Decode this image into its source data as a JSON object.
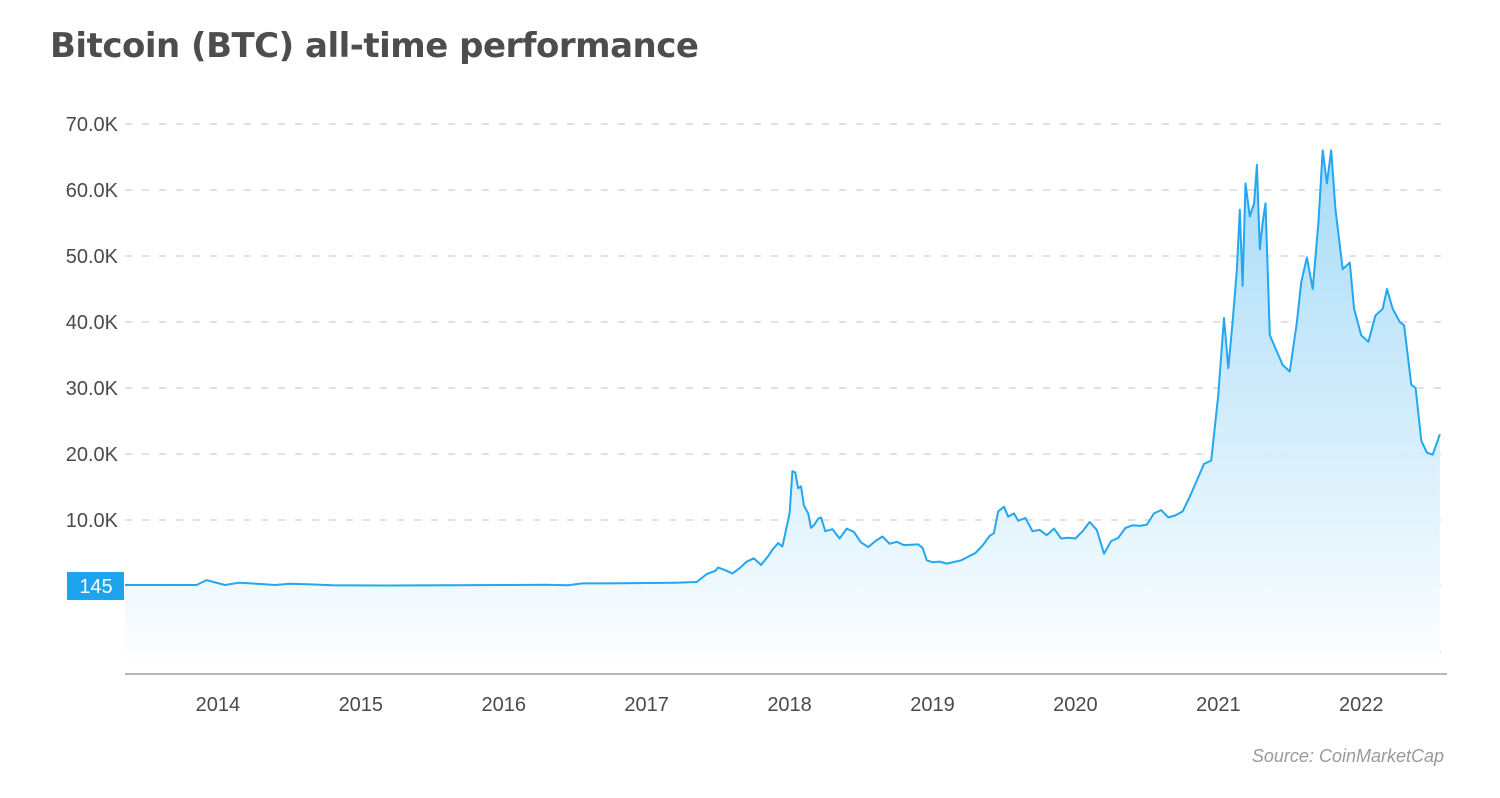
{
  "title": "Bitcoin (BTC) all-time performance",
  "source": "Source: CoinMarketCap",
  "colors": {
    "line": "#22a7f0",
    "fill_top": "#9fd8f7",
    "fill_bottom": "#ffffff",
    "grid": "#cfcfcf",
    "axis": "#9e9e9e",
    "callout_bg": "#1ea3ef"
  },
  "chart_data": {
    "type": "area",
    "x_unit": "year (decimal)",
    "y_unit": "USD",
    "ylim": [
      -10000,
      70000
    ],
    "xlim": [
      2013.35,
      2022.6
    ],
    "grid": "horizontal dashed",
    "legend": "none",
    "y_ticks": [
      {
        "value": 70000,
        "label": "70.0K"
      },
      {
        "value": 60000,
        "label": "60.0K"
      },
      {
        "value": 50000,
        "label": "50.0K"
      },
      {
        "value": 40000,
        "label": "40.0K"
      },
      {
        "value": 30000,
        "label": "30.0K"
      },
      {
        "value": 20000,
        "label": "20.0K"
      },
      {
        "value": 10000,
        "label": "10.0K"
      },
      {
        "value": 0,
        "label": ""
      },
      {
        "value": -10000,
        "label": ""
      }
    ],
    "x_ticks": [
      {
        "value": 2014.0,
        "label": "2014"
      },
      {
        "value": 2015.0,
        "label": "2015"
      },
      {
        "value": 2016.0,
        "label": "2016"
      },
      {
        "value": 2017.0,
        "label": "2017"
      },
      {
        "value": 2018.0,
        "label": "2018"
      },
      {
        "value": 2019.0,
        "label": "2019"
      },
      {
        "value": 2020.0,
        "label": "2020"
      },
      {
        "value": 2021.0,
        "label": "2021"
      },
      {
        "value": 2022.0,
        "label": "2022"
      }
    ],
    "callout": {
      "label": "145",
      "value": 145
    },
    "series": [
      {
        "points": [
          [
            2013.35,
            145
          ],
          [
            2013.85,
            145
          ],
          [
            2013.92,
            900
          ],
          [
            2014.05,
            150
          ],
          [
            2014.15,
            500
          ],
          [
            2014.3,
            300
          ],
          [
            2014.4,
            150
          ],
          [
            2014.5,
            350
          ],
          [
            2014.65,
            250
          ],
          [
            2014.8,
            100
          ],
          [
            2015.2,
            80
          ],
          [
            2015.6,
            120
          ],
          [
            2016.0,
            150
          ],
          [
            2016.3,
            200
          ],
          [
            2016.45,
            120
          ],
          [
            2016.55,
            400
          ],
          [
            2016.7,
            400
          ],
          [
            2017.0,
            450
          ],
          [
            2017.2,
            500
          ],
          [
            2017.35,
            600
          ],
          [
            2017.42,
            1800
          ],
          [
            2017.48,
            2300
          ],
          [
            2017.5,
            2800
          ],
          [
            2017.55,
            2400
          ],
          [
            2017.6,
            1900
          ],
          [
            2017.65,
            2700
          ],
          [
            2017.7,
            3700
          ],
          [
            2017.75,
            4200
          ],
          [
            2017.8,
            3200
          ],
          [
            2017.85,
            4500
          ],
          [
            2017.88,
            5500
          ],
          [
            2017.92,
            6500
          ],
          [
            2017.95,
            6000
          ],
          [
            2017.97,
            8000
          ],
          [
            2018.0,
            11000
          ],
          [
            2018.02,
            17400
          ],
          [
            2018.04,
            17200
          ],
          [
            2018.06,
            14800
          ],
          [
            2018.08,
            15100
          ],
          [
            2018.1,
            12200
          ],
          [
            2018.13,
            11000
          ],
          [
            2018.15,
            8800
          ],
          [
            2018.17,
            9200
          ],
          [
            2018.2,
            10200
          ],
          [
            2018.22,
            10400
          ],
          [
            2018.25,
            8300
          ],
          [
            2018.3,
            8600
          ],
          [
            2018.35,
            7200
          ],
          [
            2018.4,
            8700
          ],
          [
            2018.45,
            8200
          ],
          [
            2018.5,
            6600
          ],
          [
            2018.55,
            5900
          ],
          [
            2018.6,
            6800
          ],
          [
            2018.65,
            7500
          ],
          [
            2018.7,
            6400
          ],
          [
            2018.75,
            6700
          ],
          [
            2018.8,
            6200
          ],
          [
            2018.9,
            6300
          ],
          [
            2018.93,
            5800
          ],
          [
            2018.96,
            3900
          ],
          [
            2019.0,
            3600
          ],
          [
            2019.05,
            3700
          ],
          [
            2019.1,
            3400
          ],
          [
            2019.2,
            3900
          ],
          [
            2019.3,
            5000
          ],
          [
            2019.35,
            6100
          ],
          [
            2019.4,
            7600
          ],
          [
            2019.43,
            8000
          ],
          [
            2019.46,
            11300
          ],
          [
            2019.5,
            12000
          ],
          [
            2019.53,
            10500
          ],
          [
            2019.57,
            11000
          ],
          [
            2019.6,
            9900
          ],
          [
            2019.65,
            10300
          ],
          [
            2019.7,
            8300
          ],
          [
            2019.75,
            8500
          ],
          [
            2019.8,
            7700
          ],
          [
            2019.85,
            8700
          ],
          [
            2019.9,
            7200
          ],
          [
            2019.95,
            7300
          ],
          [
            2020.0,
            7200
          ],
          [
            2020.05,
            8300
          ],
          [
            2020.1,
            9700
          ],
          [
            2020.15,
            8500
          ],
          [
            2020.2,
            4900
          ],
          [
            2020.25,
            6800
          ],
          [
            2020.3,
            7300
          ],
          [
            2020.35,
            8800
          ],
          [
            2020.4,
            9200
          ],
          [
            2020.45,
            9100
          ],
          [
            2020.5,
            9300
          ],
          [
            2020.55,
            11000
          ],
          [
            2020.6,
            11500
          ],
          [
            2020.65,
            10400
          ],
          [
            2020.7,
            10700
          ],
          [
            2020.75,
            11300
          ],
          [
            2020.8,
            13500
          ],
          [
            2020.85,
            16000
          ],
          [
            2020.9,
            18500
          ],
          [
            2020.95,
            19000
          ],
          [
            2021.0,
            29000
          ],
          [
            2021.04,
            40600
          ],
          [
            2021.07,
            33000
          ],
          [
            2021.1,
            40000
          ],
          [
            2021.13,
            48000
          ],
          [
            2021.15,
            57000
          ],
          [
            2021.17,
            45500
          ],
          [
            2021.19,
            61000
          ],
          [
            2021.22,
            56000
          ],
          [
            2021.25,
            58000
          ],
          [
            2021.27,
            63800
          ],
          [
            2021.29,
            51000
          ],
          [
            2021.31,
            55000
          ],
          [
            2021.33,
            58000
          ],
          [
            2021.36,
            38000
          ],
          [
            2021.4,
            36000
          ],
          [
            2021.45,
            33500
          ],
          [
            2021.5,
            32500
          ],
          [
            2021.55,
            40000
          ],
          [
            2021.58,
            46000
          ],
          [
            2021.62,
            49800
          ],
          [
            2021.66,
            45000
          ],
          [
            2021.7,
            55000
          ],
          [
            2021.73,
            66000
          ],
          [
            2021.76,
            61000
          ],
          [
            2021.79,
            66000
          ],
          [
            2021.82,
            57000
          ],
          [
            2021.87,
            48000
          ],
          [
            2021.92,
            49000
          ],
          [
            2021.95,
            42000
          ],
          [
            2022.0,
            38000
          ],
          [
            2022.05,
            37000
          ],
          [
            2022.1,
            41000
          ],
          [
            2022.15,
            42000
          ],
          [
            2022.18,
            45000
          ],
          [
            2022.22,
            42000
          ],
          [
            2022.27,
            40000
          ],
          [
            2022.3,
            39500
          ],
          [
            2022.35,
            30500
          ],
          [
            2022.38,
            30000
          ],
          [
            2022.42,
            22000
          ],
          [
            2022.46,
            20200
          ],
          [
            2022.5,
            19900
          ],
          [
            2022.55,
            23000
          ]
        ]
      }
    ]
  }
}
